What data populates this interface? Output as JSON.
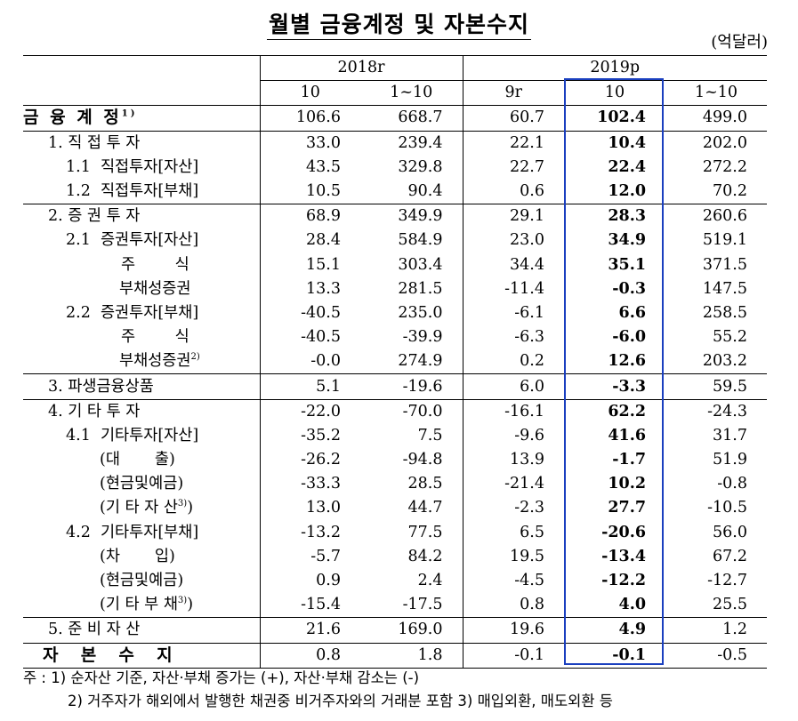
{
  "title": "월별 금융계정 및 자본수지",
  "unit": "(억달러)",
  "headers": {
    "year2018": "2018r",
    "year2019": "2019p",
    "cols": [
      "10",
      "1~10",
      "9r",
      "10",
      "1~10"
    ]
  },
  "rows": [
    {
      "label": "금 융 계 정",
      "sup": "1)",
      "vals": [
        "106.6",
        "668.7",
        "60.7",
        "102.4",
        "499.0"
      ]
    },
    {
      "label": "1. 직 접 투 자",
      "sup": "",
      "vals": [
        "33.0",
        "239.4",
        "22.1",
        "10.4",
        "202.0"
      ]
    },
    {
      "label": "1.1  직접투자[자산]",
      "sup": "",
      "vals": [
        "43.5",
        "329.8",
        "22.7",
        "22.4",
        "272.2"
      ]
    },
    {
      "label": "1.2  직접투자[부채]",
      "sup": "",
      "vals": [
        "10.5",
        "90.4",
        "0.6",
        "12.0",
        "70.2"
      ]
    },
    {
      "label": "2. 증 권 투 자",
      "sup": "",
      "vals": [
        "68.9",
        "349.9",
        "29.1",
        "28.3",
        "260.6"
      ]
    },
    {
      "label": "2.1  증권투자[자산]",
      "sup": "",
      "vals": [
        "28.4",
        "584.9",
        "23.0",
        "34.9",
        "519.1"
      ]
    },
    {
      "label": "주        식",
      "sup": "",
      "vals": [
        "15.1",
        "303.4",
        "34.4",
        "35.1",
        "371.5"
      ]
    },
    {
      "label": "부채성증권",
      "sup": "",
      "vals": [
        "13.3",
        "281.5",
        "-11.4",
        "-0.3",
        "147.5"
      ]
    },
    {
      "label": "2.2  증권투자[부채]",
      "sup": "",
      "vals": [
        "-40.5",
        "235.0",
        "-6.1",
        "6.6",
        "258.5"
      ]
    },
    {
      "label": "주        식",
      "sup": "",
      "vals": [
        "-40.5",
        "-39.9",
        "-6.3",
        "-6.0",
        "55.2"
      ]
    },
    {
      "label": "부채성증권",
      "sup": "2)",
      "vals": [
        "-0.0",
        "274.9",
        "0.2",
        "12.6",
        "203.2"
      ]
    },
    {
      "label": "3. 파생금융상품",
      "sup": "",
      "vals": [
        "5.1",
        "-19.6",
        "6.0",
        "-3.3",
        "59.5"
      ]
    },
    {
      "label": "4. 기 타 투 자",
      "sup": "",
      "vals": [
        "-22.0",
        "-70.0",
        "-16.1",
        "62.2",
        "-24.3"
      ]
    },
    {
      "label": "4.1  기타투자[자산]",
      "sup": "",
      "vals": [
        "-35.2",
        "7.5",
        "-9.6",
        "41.6",
        "31.7"
      ]
    },
    {
      "label": "(대       출)",
      "sup": "",
      "vals": [
        "-26.2",
        "-94.8",
        "13.9",
        "-1.7",
        "51.9"
      ]
    },
    {
      "label": "(현금및예금)",
      "sup": "",
      "vals": [
        "-33.3",
        "28.5",
        "-21.4",
        "10.2",
        "-0.8"
      ]
    },
    {
      "label": "(기 타 자 산",
      "sup": "3)",
      "suffix": ")",
      "vals": [
        "13.0",
        "44.7",
        "-2.3",
        "27.7",
        "-10.5"
      ]
    },
    {
      "label": "4.2  기타투자[부채]",
      "sup": "",
      "vals": [
        "-13.2",
        "77.5",
        "6.5",
        "-20.6",
        "56.0"
      ]
    },
    {
      "label": "(차       입)",
      "sup": "",
      "vals": [
        "-5.7",
        "84.2",
        "19.5",
        "-13.4",
        "67.2"
      ]
    },
    {
      "label": "(현금및예금)",
      "sup": "",
      "vals": [
        "0.9",
        "2.4",
        "-4.5",
        "-12.2",
        "-12.7"
      ]
    },
    {
      "label": "(기 타 부 채",
      "sup": "3)",
      "suffix": ")",
      "vals": [
        "-15.4",
        "-17.5",
        "0.8",
        "4.0",
        "25.5"
      ]
    },
    {
      "label": "5. 준 비 자 산",
      "sup": "",
      "vals": [
        "21.6",
        "169.0",
        "19.6",
        "4.9",
        "1.2"
      ]
    },
    {
      "label": "자  본  수  지",
      "sup": "",
      "vals": [
        "0.8",
        "1.8",
        "-0.1",
        "-0.1",
        "-0.5"
      ]
    }
  ],
  "notes": {
    "line1": "주 : 1) 순자산 기준, 자산·부채 증가는 (+), 자산·부채 감소는 (-)",
    "line2": "2) 거주자가 해외에서 발행한 채권중 비거주자와의 거래분 포함  3) 매입외환, 매도외환 등"
  },
  "highlight_color": "#1a3fbf"
}
